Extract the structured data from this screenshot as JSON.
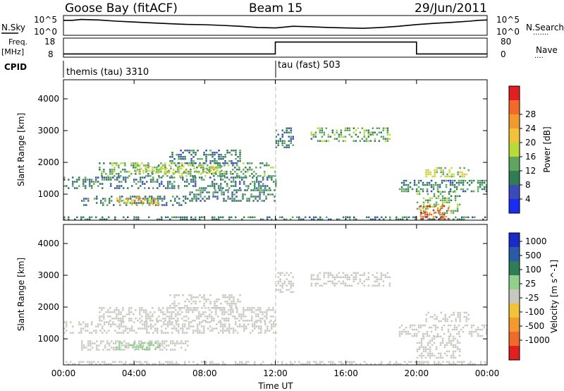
{
  "header": {
    "station": "Goose Bay (fitACF)",
    "beam": "Beam 15",
    "date": "29/Jun/2011"
  },
  "sky_panel": {
    "left_label": "N.Sky",
    "right_label": "N.Search",
    "right_dots": ".......",
    "left_ticks": [
      "10^5",
      "10^0"
    ],
    "right_ticks": [
      "10^5",
      "10^0"
    ]
  },
  "freq_panel": {
    "left_label_line1": "Freq.",
    "left_label_line2": "[MHz]",
    "right_label": "Nave",
    "right_dots": "....",
    "left_ticks": [
      "18",
      "8"
    ],
    "right_ticks": [
      "80",
      "0"
    ]
  },
  "cpid_panel": {
    "label": "CPID",
    "modes": [
      {
        "text": "themis (tau) 3310"
      },
      {
        "text": "tau (fast) 503"
      }
    ]
  },
  "chart_data": [
    {
      "type": "line",
      "name": "N.Sky / N.Search",
      "x_range_hours": [
        0,
        24
      ],
      "yscale": "log",
      "ylim": [
        "10^0",
        "10^5"
      ],
      "x_hours": [
        0,
        0.5,
        1,
        2,
        3,
        4,
        5,
        6,
        7,
        8,
        9,
        10,
        11,
        12,
        12.5,
        13,
        14,
        15,
        16,
        17,
        18,
        19,
        20,
        21,
        22,
        23,
        23.5,
        24
      ],
      "level": [
        0.8,
        0.8,
        0.85,
        0.82,
        0.75,
        0.7,
        0.65,
        0.6,
        0.56,
        0.54,
        0.5,
        0.45,
        0.38,
        0.35,
        0.4,
        0.45,
        0.42,
        0.38,
        0.35,
        0.33,
        0.38,
        0.45,
        0.55,
        0.62,
        0.68,
        0.75,
        0.8,
        0.82
      ]
    },
    {
      "type": "line",
      "name": "Frequency / Nave",
      "x_range_hours": [
        0,
        24
      ],
      "ylim_freq_mhz": [
        8,
        18
      ],
      "ylim_nave": [
        0,
        80
      ],
      "segments": [
        {
          "start": 0,
          "end": 12,
          "freq_mhz": 9.5
        },
        {
          "start": 12,
          "end": 20,
          "freq_mhz": 16.5
        },
        {
          "start": 20,
          "end": 24,
          "freq_mhz": 9.5
        }
      ]
    },
    {
      "type": "heatmap",
      "title": "Power",
      "xlabel": "Time UT",
      "ylabel": "Slant Range [km]",
      "colorbar_label": "Power [dB]",
      "x_range_hours": [
        0,
        24
      ],
      "ylim_km": [
        180,
        4600
      ],
      "x_ticks": [
        "00:00",
        "04:00",
        "08:00",
        "12:00",
        "16:00",
        "20:00",
        "00:00"
      ],
      "y_ticks": [
        1000,
        2000,
        3000,
        4000
      ],
      "colorbar_ticks": [
        4,
        8,
        12,
        16,
        20,
        24,
        28
      ],
      "colorbar_colors": [
        "#1a2cf2",
        "#3a4ab8",
        "#2e7d54",
        "#5fa55f",
        "#b7dc3a",
        "#f2c23a",
        "#f29a2e",
        "#f26a2a",
        "#e02020"
      ],
      "echo_regions": [
        {
          "t0": 0.0,
          "t1": 12.0,
          "r0": 1200,
          "r1": 1550,
          "level": 8
        },
        {
          "t0": 2.0,
          "t1": 12.0,
          "r0": 1550,
          "r1": 2000,
          "level": 12
        },
        {
          "t0": 4.0,
          "t1": 9.0,
          "r0": 1650,
          "r1": 1900,
          "level": 16
        },
        {
          "t0": 6.0,
          "t1": 10.0,
          "r0": 2000,
          "r1": 2400,
          "level": 8
        },
        {
          "t0": 1.0,
          "t1": 7.0,
          "r0": 650,
          "r1": 950,
          "level": 8
        },
        {
          "t0": 3.0,
          "t1": 5.5,
          "r0": 700,
          "r1": 900,
          "level": 20
        },
        {
          "t0": 7.0,
          "t1": 12.0,
          "r0": 800,
          "r1": 1150,
          "level": 8
        },
        {
          "t0": 12.0,
          "t1": 13.0,
          "r0": 2500,
          "r1": 3100,
          "level": 8
        },
        {
          "t0": 14.0,
          "t1": 18.5,
          "r0": 2700,
          "r1": 3100,
          "level": 12
        },
        {
          "t0": 19.0,
          "t1": 24.0,
          "r0": 1100,
          "r1": 1450,
          "level": 8
        },
        {
          "t0": 20.5,
          "t1": 23.0,
          "r0": 1550,
          "r1": 1850,
          "level": 16
        },
        {
          "t0": 20.0,
          "t1": 22.5,
          "r0": 400,
          "r1": 1100,
          "level": 12
        },
        {
          "t0": 20.2,
          "t1": 21.8,
          "r0": 250,
          "r1": 650,
          "level": 28
        },
        {
          "t0": 0.0,
          "t1": 24.0,
          "r0": 180,
          "r1": 300,
          "level": 8
        }
      ]
    },
    {
      "type": "heatmap",
      "title": "Velocity",
      "xlabel": "Time UT",
      "ylabel": "Slant Range [km]",
      "colorbar_label": "Velocity [m s^-1]",
      "x_range_hours": [
        0,
        24
      ],
      "ylim_km": [
        180,
        4600
      ],
      "x_ticks": [
        "00:00",
        "04:00",
        "08:00",
        "12:00",
        "16:00",
        "20:00",
        "00:00"
      ],
      "y_ticks": [
        1000,
        2000,
        3000,
        4000
      ],
      "colorbar_ticks": [
        1000,
        500,
        100,
        25,
        -25,
        -100,
        -500,
        -1000
      ],
      "colorbar_colors": [
        "#1a2cc8",
        "#2a5aa8",
        "#2e7d54",
        "#8fd08a",
        "#c8c8c0",
        "#f2c23a",
        "#f29a2e",
        "#f26a2a",
        "#e02020"
      ],
      "echo_regions": [
        {
          "t0": 0.0,
          "t1": 12.0,
          "r0": 1200,
          "r1": 1550,
          "level": 0
        },
        {
          "t0": 2.0,
          "t1": 12.0,
          "r0": 1550,
          "r1": 2000,
          "level": 0
        },
        {
          "t0": 6.0,
          "t1": 10.0,
          "r0": 2000,
          "r1": 2400,
          "level": 0
        },
        {
          "t0": 1.0,
          "t1": 7.0,
          "r0": 650,
          "r1": 950,
          "level": 0
        },
        {
          "t0": 3.0,
          "t1": 5.5,
          "r0": 700,
          "r1": 900,
          "level": 100
        },
        {
          "t0": 12.0,
          "t1": 13.0,
          "r0": 2500,
          "r1": 3100,
          "level": 0
        },
        {
          "t0": 14.0,
          "t1": 18.5,
          "r0": 2700,
          "r1": 3100,
          "level": 0
        },
        {
          "t0": 19.0,
          "t1": 24.0,
          "r0": 1100,
          "r1": 1450,
          "level": 0
        },
        {
          "t0": 20.5,
          "t1": 23.0,
          "r0": 1550,
          "r1": 1850,
          "level": 0
        },
        {
          "t0": 20.0,
          "t1": 22.5,
          "r0": 400,
          "r1": 1100,
          "level": 0
        },
        {
          "t0": 0.0,
          "t1": 24.0,
          "r0": 180,
          "r1": 300,
          "level": 0
        }
      ]
    }
  ]
}
